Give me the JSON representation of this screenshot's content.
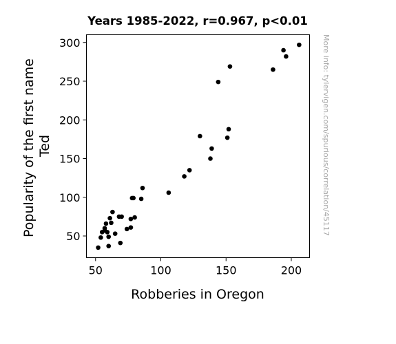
{
  "chart_data": {
    "type": "scatter",
    "title": "Years 1985-2022, r=0.967, p<0.01",
    "xlabel": "Robberies in Oregon",
    "ylabel_lines": [
      "Popularity of the first name",
      "Ted"
    ],
    "watermark": "More info: tylervigen.com/spurious/correlation/45117",
    "xlim": [
      43,
      214
    ],
    "ylim": [
      22,
      310
    ],
    "xticks": [
      50,
      100,
      150,
      200
    ],
    "yticks": [
      50,
      100,
      150,
      200,
      250,
      300
    ],
    "marker_color": "#000000",
    "points": [
      {
        "x": 52,
        "y": 35
      },
      {
        "x": 54,
        "y": 48
      },
      {
        "x": 55,
        "y": 55
      },
      {
        "x": 57,
        "y": 57
      },
      {
        "x": 57,
        "y": 60
      },
      {
        "x": 58,
        "y": 66
      },
      {
        "x": 59,
        "y": 55
      },
      {
        "x": 60,
        "y": 49
      },
      {
        "x": 60,
        "y": 37
      },
      {
        "x": 61,
        "y": 73
      },
      {
        "x": 62,
        "y": 67
      },
      {
        "x": 63,
        "y": 81
      },
      {
        "x": 65,
        "y": 53
      },
      {
        "x": 68,
        "y": 75
      },
      {
        "x": 69,
        "y": 41
      },
      {
        "x": 70,
        "y": 75
      },
      {
        "x": 74,
        "y": 59
      },
      {
        "x": 77,
        "y": 61
      },
      {
        "x": 77,
        "y": 72
      },
      {
        "x": 78,
        "y": 99
      },
      {
        "x": 79,
        "y": 99
      },
      {
        "x": 80,
        "y": 74
      },
      {
        "x": 85,
        "y": 98
      },
      {
        "x": 86,
        "y": 112
      },
      {
        "x": 106,
        "y": 106
      },
      {
        "x": 118,
        "y": 127
      },
      {
        "x": 122,
        "y": 135
      },
      {
        "x": 130,
        "y": 179
      },
      {
        "x": 138,
        "y": 150
      },
      {
        "x": 139,
        "y": 163
      },
      {
        "x": 144,
        "y": 249
      },
      {
        "x": 151,
        "y": 177
      },
      {
        "x": 152,
        "y": 188
      },
      {
        "x": 153,
        "y": 269
      },
      {
        "x": 186,
        "y": 265
      },
      {
        "x": 194,
        "y": 290
      },
      {
        "x": 196,
        "y": 282
      },
      {
        "x": 206,
        "y": 297
      }
    ]
  }
}
